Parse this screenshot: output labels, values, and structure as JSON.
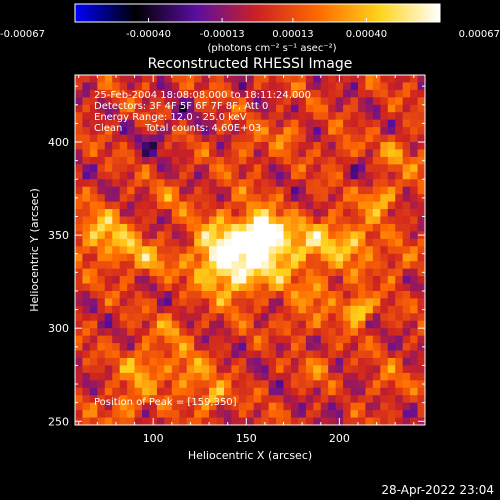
{
  "colorbar": {
    "ticks": [
      "-0.00067",
      "-0.00040",
      "-0.00013",
      "0.00013",
      "0.00040",
      "0.00067"
    ],
    "tick_values": [
      -0.00067,
      -0.0004,
      -0.00013,
      0.00013,
      0.0004,
      0.00067
    ],
    "unit_label": "(photons cm⁻² s⁻¹ asec⁻²)",
    "colormap": [
      "#0000ff",
      "#000000",
      "#5a0ea0",
      "#cc2222",
      "#ff6a00",
      "#ffd31a",
      "#ffffff"
    ]
  },
  "info_lines": [
    "25-Feb-2004 18:08:08.000 to 18:11:24.000",
    "Detectors: 3F 4F 5F 6F 7F 8F, Att 0",
    "Energy Range: 12.0 - 25.0 keV",
    "Clean",
    "Total counts: 4.60E+03"
  ],
  "peak_label": "Position of Peak = [159,350]",
  "footer_date": "28-Apr-2022 23:04",
  "chart_data": {
    "type": "heatmap",
    "title": "Reconstructed RHESSI Image",
    "xlabel": "Heliocentric X (arcsec)",
    "ylabel": "Heliocentric Y (arcsec)",
    "xlim": [
      58,
      246
    ],
    "ylim": [
      248,
      436
    ],
    "xticks": [
      100,
      150,
      200
    ],
    "yticks": [
      250,
      300,
      350,
      400
    ],
    "value_range": [
      -0.00067,
      0.00067
    ],
    "peak": [
      159,
      350
    ],
    "sources": [
      {
        "x": 159,
        "y": 350,
        "amp": 0.00067,
        "sigma": 7
      },
      {
        "x": 148,
        "y": 345,
        "amp": 0.0004,
        "sigma": 14
      },
      {
        "x": 132,
        "y": 338,
        "amp": 0.00036,
        "sigma": 10
      },
      {
        "x": 172,
        "y": 338,
        "amp": 0.00034,
        "sigma": 10
      },
      {
        "x": 145,
        "y": 326,
        "amp": 0.0003,
        "sigma": 9
      },
      {
        "x": 190,
        "y": 350,
        "amp": 0.0003,
        "sigma": 8
      },
      {
        "x": 210,
        "y": 345,
        "amp": 0.00026,
        "sigma": 8
      },
      {
        "x": 222,
        "y": 370,
        "amp": 0.0004,
        "sigma": 6
      },
      {
        "x": 230,
        "y": 335,
        "amp": 0.0002,
        "sigma": 6
      },
      {
        "x": 210,
        "y": 310,
        "amp": 0.0006,
        "sigma": 5
      },
      {
        "x": 190,
        "y": 320,
        "amp": 0.00026,
        "sigma": 7
      },
      {
        "x": 72,
        "y": 350,
        "amp": 0.0004,
        "sigma": 9
      },
      {
        "x": 88,
        "y": 340,
        "amp": 0.00026,
        "sigma": 7
      },
      {
        "x": 100,
        "y": 335,
        "amp": 0.0002,
        "sigma": 6
      },
      {
        "x": 95,
        "y": 280,
        "amp": 0.0003,
        "sigma": 8
      },
      {
        "x": 118,
        "y": 275,
        "amp": 0.0003,
        "sigma": 8
      },
      {
        "x": 132,
        "y": 263,
        "amp": 0.0004,
        "sigma": 5
      },
      {
        "x": 85,
        "y": 258,
        "amp": 0.00026,
        "sigma": 7
      },
      {
        "x": 110,
        "y": 300,
        "amp": 0.0002,
        "sigma": 6
      },
      {
        "x": 175,
        "y": 300,
        "amp": 0.00024,
        "sigma": 6
      },
      {
        "x": 150,
        "y": 395,
        "amp": 0.00018,
        "sigma": 6
      },
      {
        "x": 172,
        "y": 405,
        "amp": 0.00024,
        "sigma": 5
      },
      {
        "x": 230,
        "y": 395,
        "amp": 0.00024,
        "sigma": 6
      },
      {
        "x": 200,
        "y": 395,
        "amp": 0.0002,
        "sigma": 5
      },
      {
        "x": 225,
        "y": 270,
        "amp": 0.00016,
        "sigma": 6
      },
      {
        "x": 245,
        "y": 390,
        "amp": 0.0002,
        "sigma": 5
      },
      {
        "x": 190,
        "y": 280,
        "amp": 0.00018,
        "sigma": 6
      },
      {
        "x": 110,
        "y": 370,
        "amp": 0.00014,
        "sigma": 6
      },
      {
        "x": 100,
        "y": 400,
        "amp": -0.0002,
        "sigma": 6
      },
      {
        "x": 115,
        "y": 415,
        "amp": -0.00016,
        "sigma": 5
      },
      {
        "x": 170,
        "y": 290,
        "amp": -0.00014,
        "sigma": 6
      },
      {
        "x": 215,
        "y": 385,
        "amp": -0.00012,
        "sigma": 5
      },
      {
        "x": 200,
        "y": 260,
        "amp": -0.00014,
        "sigma": 6
      },
      {
        "x": 205,
        "y": 345,
        "amp": 0.00014,
        "sigma": 8
      }
    ]
  }
}
